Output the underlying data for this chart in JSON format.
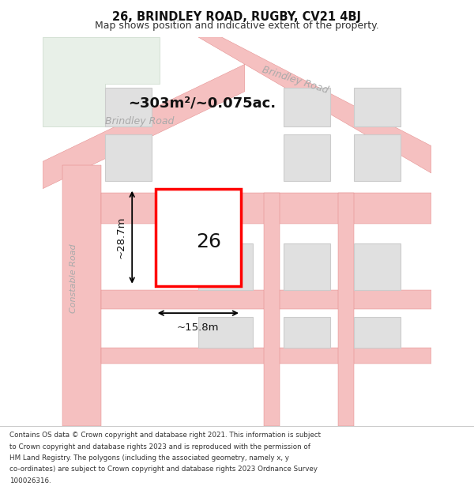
{
  "title_line1": "26, BRINDLEY ROAD, RUGBY, CV21 4BJ",
  "title_line2": "Map shows position and indicative extent of the property.",
  "bg_color": "#ffffff",
  "road_color": "#f5c0c0",
  "road_outline": "#e08080",
  "plot_color": "#ff0000",
  "plot_fill": "#ffffff",
  "green_area_color": "#e8f0e8",
  "building_fill": "#e0e0e0",
  "building_stroke": "#cccccc",
  "road_label_color": "#aaaaaa",
  "area_text": "~303m²/~0.075ac.",
  "label_26": "26",
  "dim_width": "~15.8m",
  "dim_height": "~28.7m",
  "road_name_brindley_left": "Brindley Road",
  "road_name_brindley_right": "Brindley Road",
  "road_name_constable": "Constable Road",
  "footer_lines": [
    "Contains OS data © Crown copyright and database right 2021. This information is subject",
    "to Crown copyright and database rights 2023 and is reproduced with the permission of",
    "HM Land Registry. The polygons (including the associated geometry, namely x, y",
    "co-ordinates) are subject to Crown copyright and database rights 2023 Ordnance Survey",
    "100026316."
  ]
}
